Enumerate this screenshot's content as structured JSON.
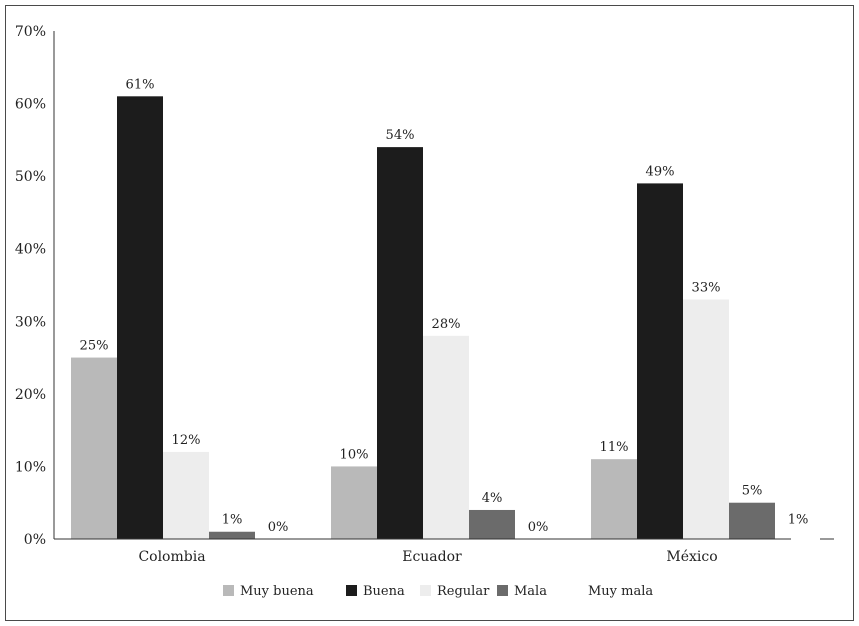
{
  "chart_data": {
    "type": "bar",
    "title": "",
    "xlabel": "",
    "ylabel": "",
    "ylim": [
      0,
      70
    ],
    "yticks": [
      "0%",
      "10%",
      "20%",
      "30%",
      "40%",
      "50%",
      "60%",
      "70%"
    ],
    "categories": [
      "Colombia",
      "Ecuador",
      "México"
    ],
    "series": [
      {
        "name": "Muy buena",
        "values": [
          25,
          10,
          11
        ],
        "labels": [
          "25%",
          "10%",
          "11%"
        ],
        "color": "#b9b9b9"
      },
      {
        "name": "Buena",
        "values": [
          61,
          54,
          49
        ],
        "labels": [
          "61%",
          "54%",
          "49%"
        ],
        "color": "#1c1c1c"
      },
      {
        "name": "Regular",
        "values": [
          12,
          28,
          33
        ],
        "labels": [
          "12%",
          "28%",
          "33%"
        ],
        "color": "#ededed"
      },
      {
        "name": "Mala",
        "values": [
          1,
          4,
          5
        ],
        "labels": [
          "1%",
          "4%",
          "5%"
        ],
        "color": "#6b6b6b"
      },
      {
        "name": "Muy mala",
        "values": [
          0,
          0,
          1
        ],
        "labels": [
          "0%",
          "0%",
          "1%"
        ],
        "color": "#ffffff"
      }
    ],
    "grid": false,
    "legend_position": "bottom"
  }
}
